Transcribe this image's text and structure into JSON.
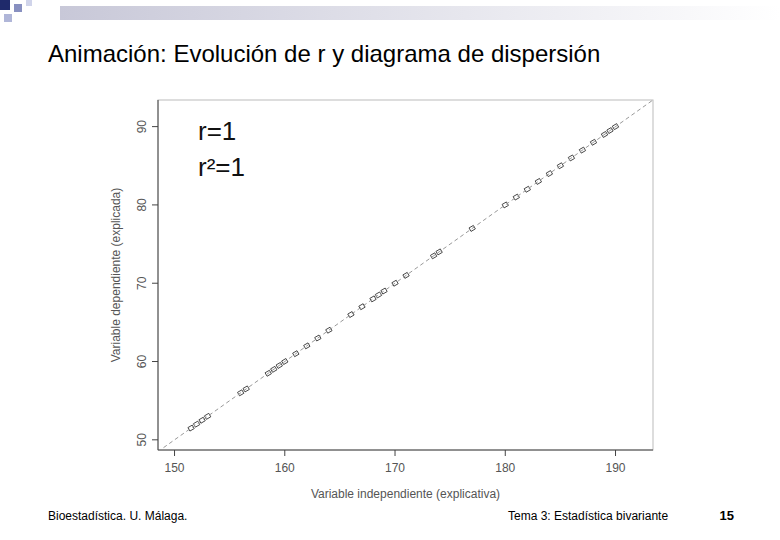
{
  "chart_data": {
    "type": "scatter",
    "title": "Animación: Evolución de r y diagrama de dispersión",
    "x_label": "Variable independiente (explicativa)",
    "y_label": "Variable dependiente (explicada)",
    "annotations": [
      "r=1",
      "r²=1"
    ],
    "xlim": [
      148.5,
      193.4
    ],
    "ylim": [
      48.7,
      93.4
    ],
    "xticks": [
      150,
      160,
      170,
      180,
      190
    ],
    "yticks": [
      50,
      60,
      70,
      80,
      90
    ],
    "grid": false,
    "series": [
      {
        "type": "scatter",
        "marker": "square",
        "color": "#333333",
        "x": [
          151.5,
          152,
          152.5,
          153,
          156,
          156.5,
          158.5,
          159,
          159.5,
          160,
          161,
          162,
          163,
          164,
          166,
          167,
          168,
          168.5,
          169,
          170,
          171,
          173.5,
          174,
          177,
          180,
          181,
          182,
          183,
          184,
          185,
          186,
          187,
          188,
          189,
          189.5,
          190
        ],
        "values": [
          51.5,
          52,
          52.5,
          53,
          56,
          56.5,
          58.5,
          59,
          59.5,
          60,
          61,
          62,
          63,
          64,
          66,
          67,
          68,
          68.5,
          69,
          70,
          71,
          73.5,
          74,
          77,
          80,
          81,
          82,
          83,
          84,
          85,
          86,
          87,
          88,
          89,
          89.5,
          90
        ]
      },
      {
        "type": "line",
        "line_style": "dashed",
        "color": "#999999",
        "x": [
          149,
          193.4
        ],
        "values": [
          49,
          93.4
        ]
      }
    ]
  },
  "slide": {
    "footer_left": "Bioestadística. U. Málaga.",
    "footer_right": "Tema 3: Estadística bivariante",
    "page_number": 15
  }
}
